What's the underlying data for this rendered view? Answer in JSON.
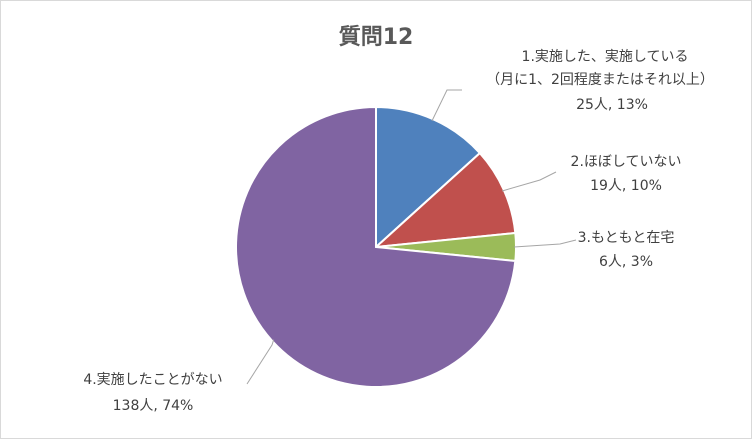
{
  "chart_data": {
    "type": "pie",
    "title": "質問12",
    "slices": [
      {
        "category": "1.実施した、実施している",
        "category_line2": "（月に1、2回程度またはそれ以上）",
        "value_label": "25人, 13%",
        "count": 25,
        "percent": 13,
        "color": "#4F81BD"
      },
      {
        "category": "2.ほぼしていない",
        "category_line2": "",
        "value_label": "19人, 10%",
        "count": 19,
        "percent": 10,
        "color": "#C0504D"
      },
      {
        "category": "3.もともと在宅",
        "category_line2": "",
        "value_label": "6人, 3%",
        "count": 6,
        "percent": 3,
        "color": "#9BBB59"
      },
      {
        "category": "4.実施したことがない",
        "category_line2": "",
        "value_label": "138人, 74%",
        "count": 138,
        "percent": 74,
        "color": "#8064A2"
      }
    ]
  }
}
